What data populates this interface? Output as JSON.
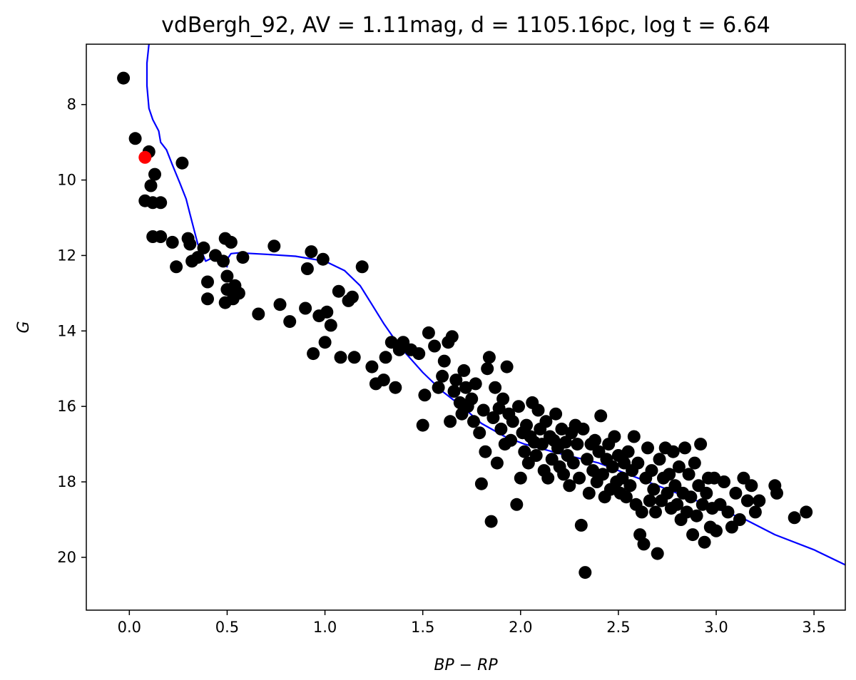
{
  "chart_data": {
    "type": "scatter",
    "title": "vdBergh_92, AV = 1.11mag, d = 1105.16pc, log t = 6.64",
    "xlabel": "BP − RP",
    "ylabel": "G",
    "xlim": [
      -0.22,
      3.66
    ],
    "ylim": [
      21.4,
      6.4
    ],
    "y_inverted": true,
    "grid": false,
    "x_ticks": [
      0.0,
      0.5,
      1.0,
      1.5,
      2.0,
      2.5,
      3.0,
      3.5
    ],
    "x_tick_labels": [
      "0.0",
      "0.5",
      "1.0",
      "1.5",
      "2.0",
      "2.5",
      "3.0",
      "3.5"
    ],
    "y_ticks": [
      8,
      10,
      12,
      14,
      16,
      18,
      20
    ],
    "y_tick_labels": [
      "8",
      "10",
      "12",
      "14",
      "16",
      "18",
      "20"
    ],
    "colors": {
      "stars": "#000000",
      "highlight": "#ff0000",
      "isochrone": "#0000ff"
    },
    "series": [
      {
        "kind": "scatter",
        "points": [
          [
            -0.03,
            7.3
          ],
          [
            0.03,
            8.9
          ],
          [
            0.1,
            9.25
          ],
          [
            0.27,
            9.55
          ],
          [
            0.13,
            9.85
          ],
          [
            0.11,
            10.15
          ],
          [
            0.08,
            10.55
          ],
          [
            0.12,
            10.6
          ],
          [
            0.16,
            10.6
          ],
          [
            0.12,
            11.5
          ],
          [
            0.16,
            11.5
          ],
          [
            0.22,
            11.65
          ],
          [
            0.3,
            11.55
          ],
          [
            0.31,
            11.7
          ],
          [
            0.24,
            12.3
          ],
          [
            0.32,
            12.15
          ],
          [
            0.35,
            12.05
          ],
          [
            0.38,
            11.8
          ],
          [
            0.44,
            12.0
          ],
          [
            0.48,
            12.15
          ],
          [
            0.49,
            11.55
          ],
          [
            0.52,
            11.65
          ],
          [
            0.58,
            12.05
          ],
          [
            0.4,
            12.7
          ],
          [
            0.4,
            13.15
          ],
          [
            0.5,
            12.55
          ],
          [
            0.5,
            12.9
          ],
          [
            0.54,
            12.8
          ],
          [
            0.56,
            13.0
          ],
          [
            0.49,
            13.25
          ],
          [
            0.53,
            13.15
          ],
          [
            0.66,
            13.55
          ],
          [
            0.74,
            11.75
          ],
          [
            0.77,
            13.3
          ],
          [
            0.82,
            13.75
          ],
          [
            0.9,
            13.4
          ],
          [
            0.91,
            12.35
          ],
          [
            0.93,
            11.9
          ],
          [
            0.99,
            12.1
          ],
          [
            0.94,
            14.6
          ],
          [
            0.97,
            13.6
          ],
          [
            1.0,
            14.3
          ],
          [
            1.01,
            13.5
          ],
          [
            1.03,
            13.85
          ],
          [
            1.07,
            12.95
          ],
          [
            1.08,
            14.7
          ],
          [
            1.12,
            13.2
          ],
          [
            1.14,
            13.1
          ],
          [
            1.15,
            14.7
          ],
          [
            1.19,
            12.3
          ],
          [
            1.24,
            14.95
          ],
          [
            1.26,
            15.4
          ],
          [
            1.3,
            15.3
          ],
          [
            1.31,
            14.7
          ],
          [
            1.34,
            14.3
          ],
          [
            1.36,
            15.5
          ],
          [
            1.38,
            14.5
          ],
          [
            1.4,
            14.3
          ],
          [
            1.44,
            14.5
          ],
          [
            1.48,
            14.6
          ],
          [
            1.5,
            16.5
          ],
          [
            1.51,
            15.7
          ],
          [
            1.53,
            14.05
          ],
          [
            1.56,
            14.4
          ],
          [
            1.58,
            15.5
          ],
          [
            1.6,
            15.2
          ],
          [
            1.61,
            14.8
          ],
          [
            1.63,
            14.3
          ],
          [
            1.65,
            14.15
          ],
          [
            1.64,
            16.4
          ],
          [
            1.66,
            15.6
          ],
          [
            1.67,
            15.3
          ],
          [
            1.69,
            15.9
          ],
          [
            1.7,
            16.2
          ],
          [
            1.71,
            15.05
          ],
          [
            1.72,
            15.5
          ],
          [
            1.73,
            16.0
          ],
          [
            1.75,
            15.8
          ],
          [
            1.76,
            16.4
          ],
          [
            1.77,
            15.4
          ],
          [
            1.79,
            16.7
          ],
          [
            1.8,
            18.05
          ],
          [
            1.81,
            16.1
          ],
          [
            1.82,
            17.2
          ],
          [
            1.83,
            15.0
          ],
          [
            1.84,
            14.7
          ],
          [
            1.85,
            19.05
          ],
          [
            1.86,
            16.3
          ],
          [
            1.87,
            15.5
          ],
          [
            1.88,
            17.5
          ],
          [
            1.89,
            16.05
          ],
          [
            1.9,
            16.6
          ],
          [
            1.91,
            15.8
          ],
          [
            1.92,
            17.0
          ],
          [
            1.93,
            14.95
          ],
          [
            1.94,
            16.2
          ],
          [
            1.95,
            16.9
          ],
          [
            1.96,
            16.4
          ],
          [
            1.98,
            18.6
          ],
          [
            1.99,
            16.0
          ],
          [
            2.0,
            17.9
          ],
          [
            2.01,
            16.7
          ],
          [
            2.02,
            17.2
          ],
          [
            2.03,
            16.5
          ],
          [
            2.04,
            17.5
          ],
          [
            2.05,
            16.8
          ],
          [
            2.06,
            15.9
          ],
          [
            2.07,
            16.95
          ],
          [
            2.08,
            17.3
          ],
          [
            2.09,
            16.1
          ],
          [
            2.1,
            16.6
          ],
          [
            2.11,
            17.0
          ],
          [
            2.12,
            17.7
          ],
          [
            2.13,
            16.4
          ],
          [
            2.14,
            17.9
          ],
          [
            2.15,
            16.8
          ],
          [
            2.16,
            17.4
          ],
          [
            2.17,
            16.9
          ],
          [
            2.18,
            16.2
          ],
          [
            2.19,
            17.1
          ],
          [
            2.2,
            17.6
          ],
          [
            2.21,
            16.6
          ],
          [
            2.22,
            17.8
          ],
          [
            2.23,
            16.95
          ],
          [
            2.24,
            17.3
          ],
          [
            2.25,
            18.1
          ],
          [
            2.26,
            16.7
          ],
          [
            2.27,
            17.5
          ],
          [
            2.28,
            16.5
          ],
          [
            2.29,
            17.0
          ],
          [
            2.3,
            17.9
          ],
          [
            2.31,
            19.15
          ],
          [
            2.32,
            16.6
          ],
          [
            2.33,
            20.4
          ],
          [
            2.34,
            17.4
          ],
          [
            2.35,
            18.3
          ],
          [
            2.36,
            17.0
          ],
          [
            2.37,
            17.7
          ],
          [
            2.38,
            16.9
          ],
          [
            2.39,
            18.0
          ],
          [
            2.4,
            17.2
          ],
          [
            2.41,
            16.25
          ],
          [
            2.42,
            17.8
          ],
          [
            2.43,
            18.4
          ],
          [
            2.44,
            17.4
          ],
          [
            2.45,
            17.0
          ],
          [
            2.46,
            18.2
          ],
          [
            2.47,
            17.6
          ],
          [
            2.48,
            16.8
          ],
          [
            2.49,
            18.0
          ],
          [
            2.5,
            17.3
          ],
          [
            2.51,
            18.3
          ],
          [
            2.52,
            17.9
          ],
          [
            2.53,
            17.5
          ],
          [
            2.54,
            18.4
          ],
          [
            2.55,
            17.2
          ],
          [
            2.56,
            18.1
          ],
          [
            2.57,
            17.7
          ],
          [
            2.58,
            16.8
          ],
          [
            2.59,
            18.6
          ],
          [
            2.6,
            17.5
          ],
          [
            2.61,
            19.4
          ],
          [
            2.62,
            18.8
          ],
          [
            2.63,
            19.65
          ],
          [
            2.64,
            17.9
          ],
          [
            2.65,
            17.1
          ],
          [
            2.66,
            18.5
          ],
          [
            2.67,
            17.7
          ],
          [
            2.68,
            18.2
          ],
          [
            2.69,
            18.8
          ],
          [
            2.7,
            19.9
          ],
          [
            2.71,
            17.4
          ],
          [
            2.72,
            18.5
          ],
          [
            2.73,
            17.9
          ],
          [
            2.74,
            17.1
          ],
          [
            2.75,
            18.3
          ],
          [
            2.76,
            17.8
          ],
          [
            2.77,
            18.7
          ],
          [
            2.78,
            17.2
          ],
          [
            2.79,
            18.1
          ],
          [
            2.8,
            18.6
          ],
          [
            2.81,
            17.6
          ],
          [
            2.82,
            19.0
          ],
          [
            2.83,
            18.3
          ],
          [
            2.84,
            17.1
          ],
          [
            2.85,
            18.8
          ],
          [
            2.86,
            17.8
          ],
          [
            2.87,
            18.4
          ],
          [
            2.88,
            19.4
          ],
          [
            2.89,
            17.5
          ],
          [
            2.9,
            18.9
          ],
          [
            2.91,
            18.1
          ],
          [
            2.92,
            17.0
          ],
          [
            2.93,
            18.6
          ],
          [
            2.94,
            19.6
          ],
          [
            2.95,
            18.3
          ],
          [
            2.96,
            17.9
          ],
          [
            2.97,
            19.2
          ],
          [
            2.98,
            18.7
          ],
          [
            2.99,
            17.9
          ],
          [
            3.0,
            19.3
          ],
          [
            3.02,
            18.6
          ],
          [
            3.04,
            18.0
          ],
          [
            3.06,
            18.8
          ],
          [
            3.08,
            19.2
          ],
          [
            3.1,
            18.3
          ],
          [
            3.12,
            19.0
          ],
          [
            3.14,
            17.9
          ],
          [
            3.16,
            18.5
          ],
          [
            3.18,
            18.1
          ],
          [
            3.2,
            18.8
          ],
          [
            3.22,
            18.5
          ],
          [
            3.3,
            18.1
          ],
          [
            3.31,
            18.3
          ],
          [
            3.4,
            18.95
          ],
          [
            3.46,
            18.8
          ]
        ]
      },
      {
        "kind": "highlight",
        "points": [
          [
            0.08,
            9.4
          ]
        ]
      },
      {
        "kind": "line",
        "points": [
          [
            0.1,
            6.4
          ],
          [
            0.09,
            6.9
          ],
          [
            0.09,
            7.5
          ],
          [
            0.1,
            8.1
          ],
          [
            0.12,
            8.4
          ],
          [
            0.15,
            8.7
          ],
          [
            0.16,
            9.0
          ],
          [
            0.19,
            9.2
          ],
          [
            0.22,
            9.6
          ],
          [
            0.26,
            10.1
          ],
          [
            0.29,
            10.5
          ],
          [
            0.31,
            10.9
          ],
          [
            0.33,
            11.3
          ],
          [
            0.35,
            11.7
          ],
          [
            0.37,
            11.9
          ],
          [
            0.39,
            12.15
          ],
          [
            0.41,
            12.1
          ],
          [
            0.43,
            12.0
          ],
          [
            0.45,
            12.05
          ],
          [
            0.47,
            12.15
          ],
          [
            0.5,
            12.3
          ],
          [
            0.5,
            12.1
          ],
          [
            0.52,
            11.95
          ],
          [
            0.56,
            11.93
          ],
          [
            0.7,
            11.97
          ],
          [
            0.85,
            12.02
          ],
          [
            1.0,
            12.15
          ],
          [
            1.1,
            12.4
          ],
          [
            1.18,
            12.8
          ],
          [
            1.24,
            13.3
          ],
          [
            1.3,
            13.8
          ],
          [
            1.38,
            14.4
          ],
          [
            1.5,
            15.1
          ],
          [
            1.6,
            15.6
          ],
          [
            1.7,
            16.0
          ],
          [
            1.8,
            16.45
          ],
          [
            1.92,
            16.8
          ],
          [
            2.02,
            17.0
          ],
          [
            2.2,
            17.25
          ],
          [
            2.4,
            17.5
          ],
          [
            2.6,
            17.9
          ],
          [
            2.8,
            18.3
          ],
          [
            3.0,
            18.7
          ],
          [
            3.15,
            19.0
          ],
          [
            3.3,
            19.4
          ],
          [
            3.5,
            19.8
          ],
          [
            3.66,
            20.2
          ]
        ]
      }
    ]
  }
}
